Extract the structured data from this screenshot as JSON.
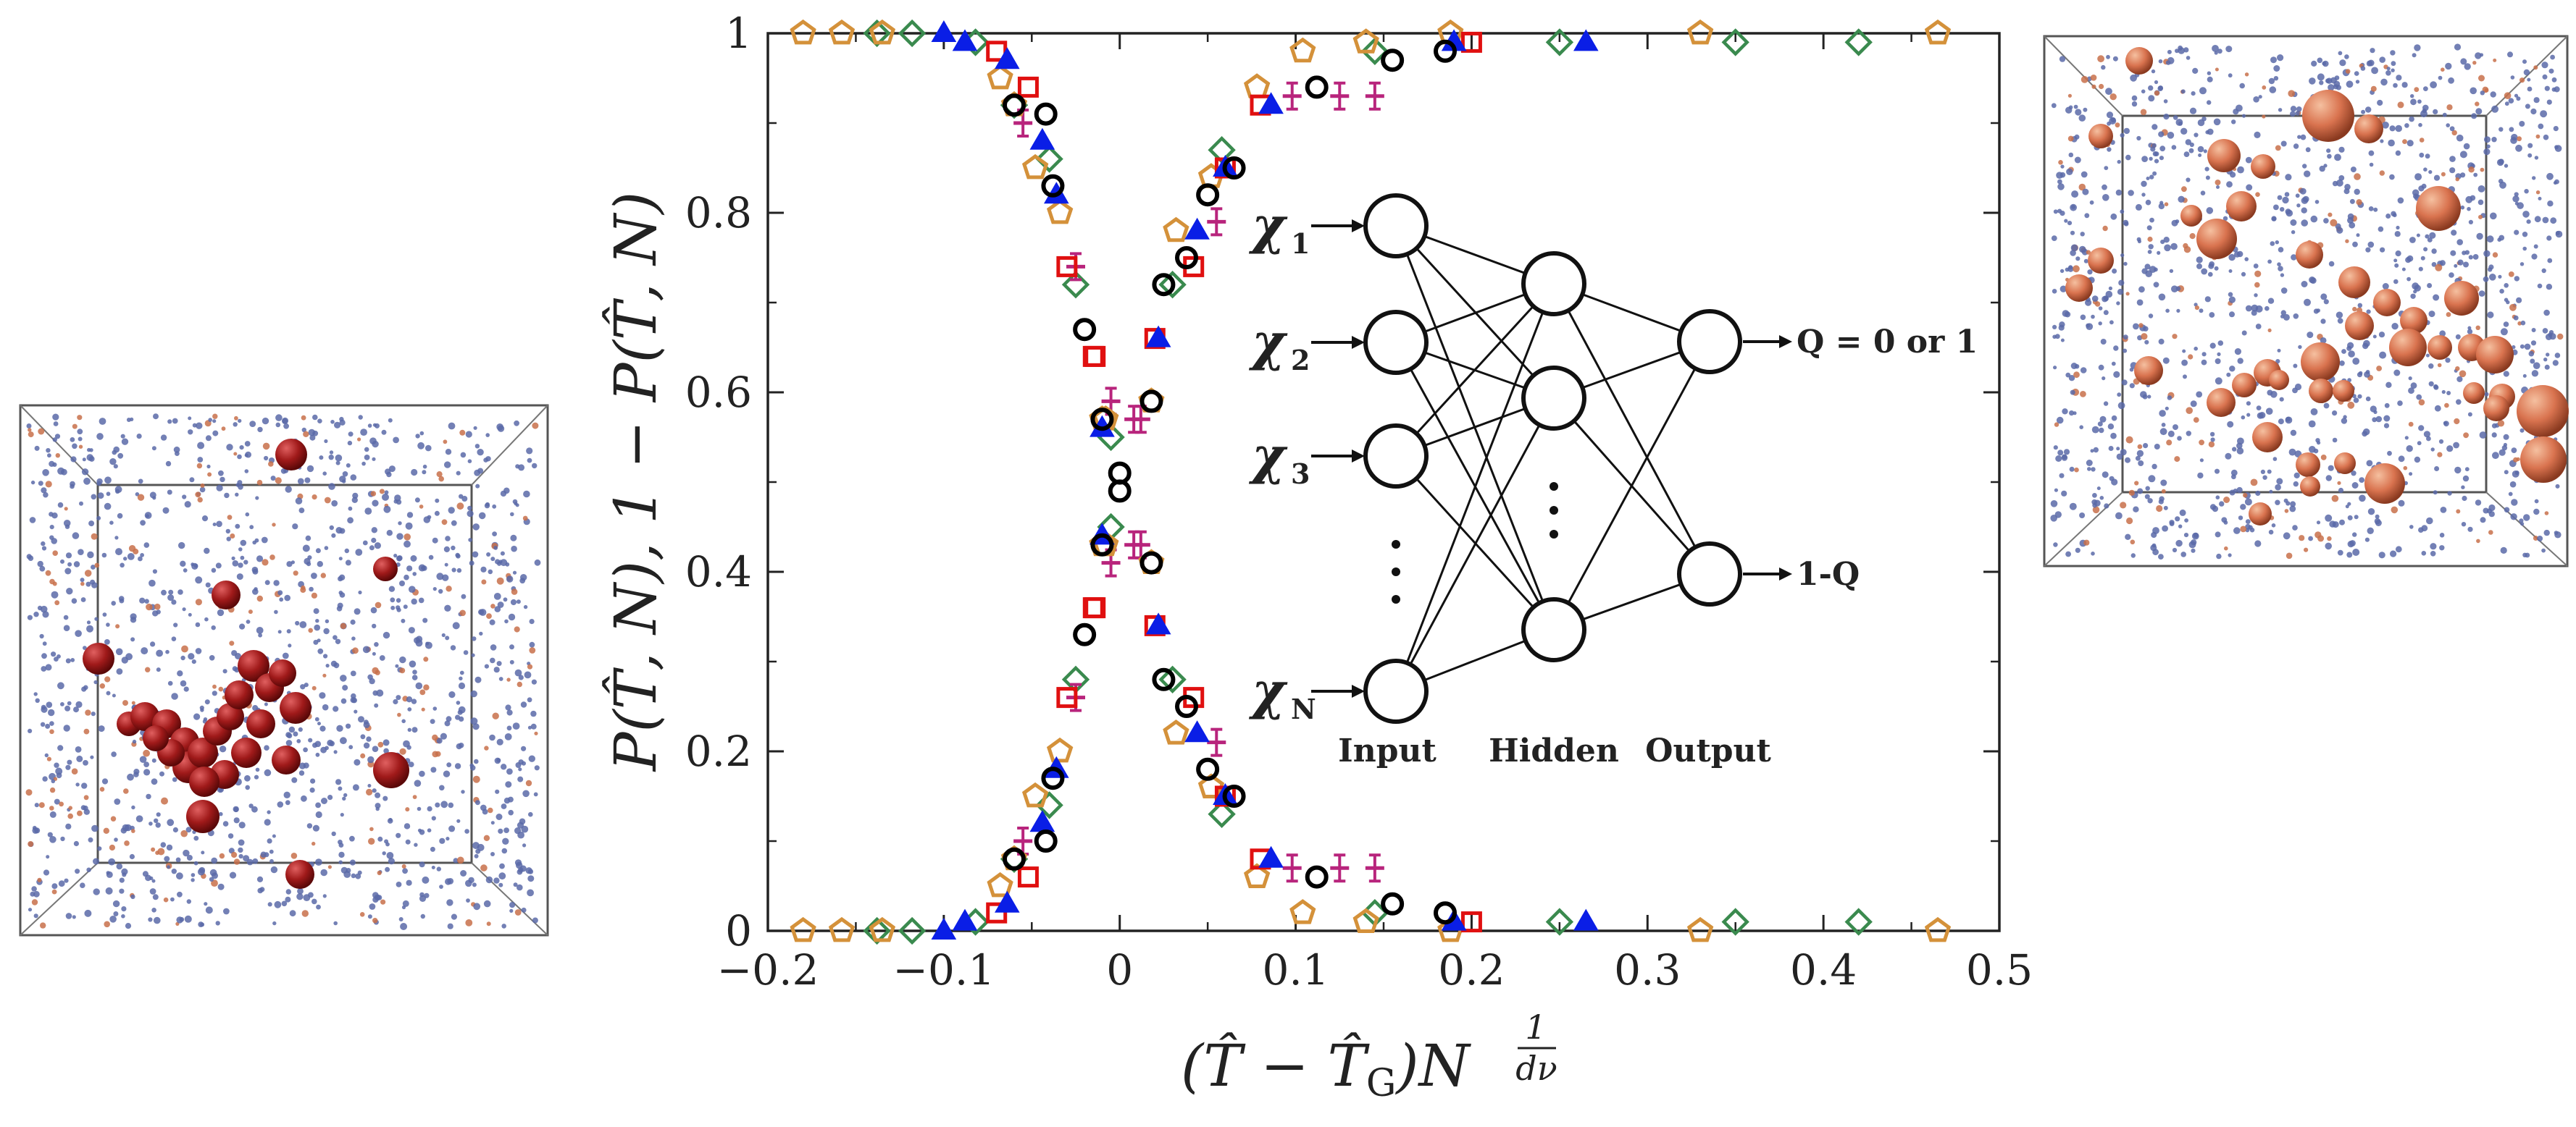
{
  "chart_data": {
    "type": "scatter",
    "title": "",
    "xlabel": "(T̂ − T̂G)N^(1/dν)",
    "ylabel": "P(T̂, N), 1 − P(T̂, N)",
    "xlim": [
      -0.2,
      0.5
    ],
    "ylim": [
      0,
      1
    ],
    "x_ticks": [
      "−0.2",
      "−0.1",
      "0",
      "0.1",
      "0.2",
      "0.3",
      "0.4",
      "0.5"
    ],
    "y_ticks": [
      "0",
      "0.2",
      "0.4",
      "0.6",
      "0.8",
      "1"
    ],
    "x_tick_values": [
      -0.2,
      -0.1,
      0,
      0.1,
      0.2,
      0.3,
      0.4,
      0.5
    ],
    "y_tick_values": [
      0,
      0.2,
      0.4,
      0.6,
      0.8,
      1
    ],
    "series": [
      {
        "name": "black circles",
        "marker": "circle",
        "color": "#000000",
        "points": [
          [
            -0.06,
            0.92
          ],
          [
            -0.042,
            0.91
          ],
          [
            -0.038,
            0.83
          ],
          [
            -0.02,
            0.67
          ],
          [
            -0.01,
            0.57
          ],
          [
            0.0,
            0.51
          ],
          [
            0.018,
            0.59
          ],
          [
            0.025,
            0.28
          ],
          [
            0.038,
            0.25
          ],
          [
            0.05,
            0.18
          ],
          [
            0.065,
            0.15
          ],
          [
            0.112,
            0.06
          ],
          [
            0.155,
            0.03
          ],
          [
            0.185,
            0.02
          ],
          [
            -0.06,
            0.08
          ],
          [
            -0.042,
            0.1
          ],
          [
            -0.038,
            0.17
          ],
          [
            -0.02,
            0.33
          ],
          [
            -0.01,
            0.43
          ],
          [
            0.0,
            0.49
          ],
          [
            0.018,
            0.41
          ],
          [
            0.025,
            0.72
          ],
          [
            0.038,
            0.75
          ],
          [
            0.05,
            0.82
          ],
          [
            0.065,
            0.85
          ],
          [
            0.112,
            0.94
          ],
          [
            0.155,
            0.97
          ],
          [
            0.185,
            0.98
          ]
        ]
      },
      {
        "name": "red squares",
        "marker": "square",
        "color": "#e01010",
        "points": [
          [
            -0.07,
            0.98
          ],
          [
            -0.052,
            0.94
          ],
          [
            -0.03,
            0.74
          ],
          [
            -0.015,
            0.64
          ],
          [
            -0.014,
            0.36
          ],
          [
            0.02,
            0.34
          ],
          [
            0.042,
            0.26
          ],
          [
            0.06,
            0.15
          ],
          [
            0.08,
            0.08
          ],
          [
            0.2,
            0.01
          ],
          [
            -0.07,
            0.02
          ],
          [
            -0.052,
            0.06
          ],
          [
            -0.03,
            0.26
          ],
          [
            -0.015,
            0.36
          ],
          [
            -0.014,
            0.64
          ],
          [
            0.02,
            0.66
          ],
          [
            0.042,
            0.74
          ],
          [
            0.06,
            0.85
          ],
          [
            0.08,
            0.92
          ],
          [
            0.2,
            0.99
          ]
        ]
      },
      {
        "name": "blue triangles",
        "marker": "triangle",
        "color": "#0a1ee6",
        "points": [
          [
            -0.1,
            1.0
          ],
          [
            -0.088,
            0.99
          ],
          [
            -0.064,
            0.97
          ],
          [
            -0.044,
            0.88
          ],
          [
            -0.036,
            0.82
          ],
          [
            -0.01,
            0.56
          ],
          [
            0.022,
            0.34
          ],
          [
            0.044,
            0.22
          ],
          [
            0.06,
            0.15
          ],
          [
            0.086,
            0.08
          ],
          [
            0.19,
            0.01
          ],
          [
            0.265,
            0.01
          ],
          [
            -0.1,
            0.0
          ],
          [
            -0.088,
            0.01
          ],
          [
            -0.064,
            0.03
          ],
          [
            -0.044,
            0.12
          ],
          [
            -0.036,
            0.18
          ],
          [
            -0.01,
            0.44
          ],
          [
            0.022,
            0.66
          ],
          [
            0.044,
            0.78
          ],
          [
            0.06,
            0.85
          ],
          [
            0.086,
            0.92
          ],
          [
            0.19,
            0.99
          ],
          [
            0.265,
            0.99
          ]
        ]
      },
      {
        "name": "magenta crosses",
        "marker": "plus",
        "color": "#b8247c",
        "points": [
          [
            -0.055,
            0.9
          ],
          [
            -0.025,
            0.74
          ],
          [
            -0.005,
            0.59
          ],
          [
            0.008,
            0.57
          ],
          [
            0.012,
            0.43
          ],
          [
            0.055,
            0.21
          ],
          [
            0.098,
            0.07
          ],
          [
            0.125,
            0.07
          ],
          [
            0.145,
            0.07
          ],
          [
            -0.055,
            0.1
          ],
          [
            -0.025,
            0.26
          ],
          [
            -0.005,
            0.41
          ],
          [
            0.008,
            0.43
          ],
          [
            0.012,
            0.57
          ],
          [
            0.055,
            0.79
          ],
          [
            0.098,
            0.93
          ],
          [
            0.125,
            0.93
          ],
          [
            0.145,
            0.93
          ]
        ]
      },
      {
        "name": "green diamonds",
        "marker": "diamond",
        "color": "#3a8a4e",
        "points": [
          [
            -0.138,
            1.0
          ],
          [
            -0.118,
            1.0
          ],
          [
            -0.082,
            0.99
          ],
          [
            -0.06,
            0.92
          ],
          [
            -0.04,
            0.86
          ],
          [
            -0.025,
            0.72
          ],
          [
            -0.005,
            0.55
          ],
          [
            0.03,
            0.28
          ],
          [
            0.058,
            0.13
          ],
          [
            0.145,
            0.02
          ],
          [
            0.25,
            0.01
          ],
          [
            0.35,
            0.01
          ],
          [
            0.42,
            0.01
          ],
          [
            -0.138,
            0.0
          ],
          [
            -0.118,
            0.0
          ],
          [
            -0.082,
            0.01
          ],
          [
            -0.06,
            0.08
          ],
          [
            -0.04,
            0.14
          ],
          [
            -0.025,
            0.28
          ],
          [
            -0.005,
            0.45
          ],
          [
            0.03,
            0.72
          ],
          [
            0.058,
            0.87
          ],
          [
            0.145,
            0.98
          ],
          [
            0.25,
            0.99
          ],
          [
            0.35,
            0.99
          ],
          [
            0.42,
            0.99
          ]
        ]
      },
      {
        "name": "orange pentagons",
        "marker": "pentagon",
        "color": "#d4913a",
        "points": [
          [
            -0.18,
            1.0
          ],
          [
            -0.158,
            1.0
          ],
          [
            -0.135,
            1.0
          ],
          [
            -0.068,
            0.95
          ],
          [
            -0.06,
            0.92
          ],
          [
            -0.048,
            0.85
          ],
          [
            -0.034,
            0.8
          ],
          [
            -0.008,
            0.57
          ],
          [
            -0.01,
            0.43
          ],
          [
            0.018,
            0.41
          ],
          [
            0.032,
            0.22
          ],
          [
            0.052,
            0.16
          ],
          [
            0.078,
            0.06
          ],
          [
            0.104,
            0.02
          ],
          [
            0.14,
            0.01
          ],
          [
            0.188,
            0.0
          ],
          [
            0.33,
            0.0
          ],
          [
            0.465,
            0.0
          ],
          [
            -0.18,
            0.0
          ],
          [
            -0.158,
            0.0
          ],
          [
            -0.135,
            0.0
          ],
          [
            -0.068,
            0.05
          ],
          [
            -0.06,
            0.08
          ],
          [
            -0.048,
            0.15
          ],
          [
            -0.034,
            0.2
          ],
          [
            -0.008,
            0.43
          ],
          [
            -0.01,
            0.57
          ],
          [
            0.018,
            0.59
          ],
          [
            0.032,
            0.78
          ],
          [
            0.052,
            0.84
          ],
          [
            0.078,
            0.94
          ],
          [
            0.104,
            0.98
          ],
          [
            0.14,
            0.99
          ],
          [
            0.188,
            1.0
          ],
          [
            0.33,
            1.0
          ],
          [
            0.465,
            1.0
          ]
        ]
      }
    ]
  },
  "network": {
    "input_labels": [
      "χ",
      "χ",
      "χ",
      "χ"
    ],
    "input_subscripts": [
      "1",
      "2",
      "3",
      "N"
    ],
    "output_labels": [
      "Q = 0 or 1",
      "1-Q"
    ],
    "layer_labels": [
      "Input",
      "Hidden",
      "Output"
    ]
  },
  "colors": {
    "left_spheres": "#a01a1a",
    "right_spheres": "#d9734f",
    "particles": "#5a6aa8"
  }
}
